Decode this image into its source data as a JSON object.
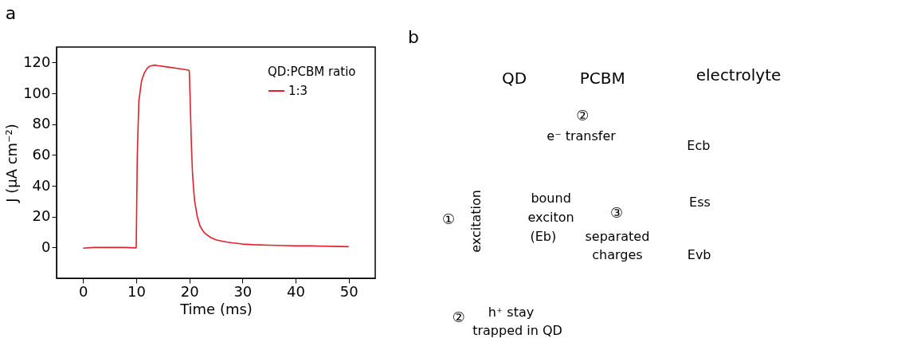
{
  "chart_data": [
    {
      "type": "line",
      "title": "a",
      "xlabel": "Time (ms)",
      "ylabel": "J (µA cm⁻²)",
      "legend_title": "QD:PCBM ratio",
      "legend": "top right",
      "grid": false,
      "xlim": [
        -5,
        55
      ],
      "xticks": [
        0,
        10,
        20,
        30,
        40,
        50
      ],
      "ylim": [
        -20,
        130
      ],
      "yticks": [
        0,
        20,
        40,
        60,
        80,
        100,
        120
      ],
      "series": [
        {
          "name": "1:3",
          "color": "#e0202a",
          "x": [
            0,
            2,
            5,
            8,
            9.9,
            10,
            10.2,
            10.5,
            11,
            11.5,
            12,
            12.5,
            13,
            13.5,
            14,
            16,
            18,
            19.9,
            20,
            20.2,
            20.4,
            20.6,
            20.8,
            21,
            21.5,
            22,
            22.5,
            23,
            24,
            25,
            26,
            27,
            28,
            30,
            32,
            35,
            38,
            40,
            43,
            45,
            48,
            50
          ],
          "values": [
            -0.5,
            0,
            0,
            0,
            -0.3,
            0,
            60,
            95,
            108,
            113,
            116,
            117.5,
            118,
            118.3,
            118,
            117,
            116,
            115,
            114,
            90,
            65,
            48,
            38,
            30,
            20,
            14,
            11,
            9,
            6.5,
            5,
            4.2,
            3.5,
            3,
            2.2,
            1.8,
            1.5,
            1.2,
            1,
            1,
            0.8,
            0.6,
            0.5
          ]
        }
      ]
    },
    {
      "type": "other",
      "title": "b",
      "annotations": [
        "QD",
        "PCBM",
        "electrolyte",
        "②",
        "e⁻ transfer",
        "Ecb",
        "①",
        "excitation",
        "bound",
        "exciton",
        "(Eb)",
        "③",
        "separated",
        "charges",
        "Ess",
        "Evb",
        "②",
        "h⁺ stay",
        "trapped in QD"
      ]
    }
  ]
}
